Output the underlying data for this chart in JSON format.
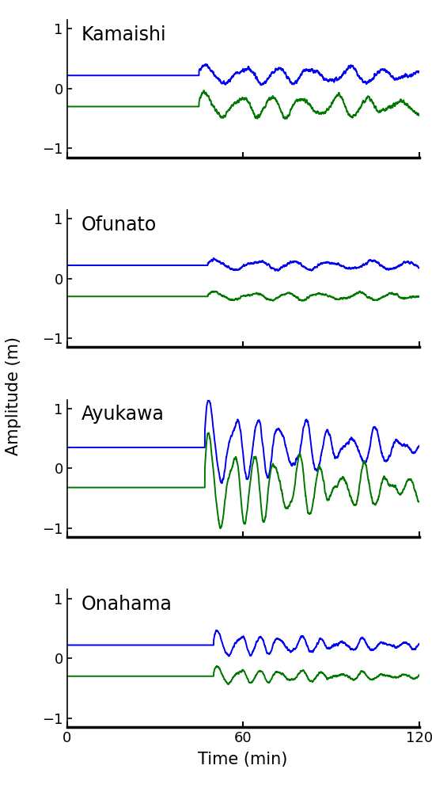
{
  "panels": [
    {
      "title": "Kamaishi",
      "blue_base": 0.22,
      "green_base": -0.3,
      "onset": 45,
      "blue_amp": 0.13,
      "green_amp": 0.17,
      "blue_period": 12.0,
      "green_period": 11.0,
      "blue_decay": 0.005,
      "green_decay": 0.005,
      "noise_b": 0.04,
      "noise_g": 0.04,
      "extra_freq_b": 0.05,
      "extra_freq_g": 0.05
    },
    {
      "title": "Ofunato",
      "blue_base": 0.22,
      "green_base": -0.3,
      "onset": 48,
      "blue_amp": 0.07,
      "green_amp": 0.06,
      "blue_period": 13.0,
      "green_period": 12.0,
      "blue_decay": 0.005,
      "green_decay": 0.005,
      "noise_b": 0.025,
      "noise_g": 0.02,
      "extra_freq_b": 0.04,
      "extra_freq_g": 0.04
    },
    {
      "title": "Ayukawa",
      "blue_base": 0.35,
      "green_base": -0.32,
      "onset": 47,
      "blue_amp": 0.6,
      "green_amp": 0.68,
      "blue_period": 8.0,
      "green_period": 7.5,
      "blue_decay": 0.02,
      "green_decay": 0.02,
      "noise_b": 0.04,
      "noise_g": 0.04,
      "extra_freq_b": 0.07,
      "extra_freq_g": 0.07
    },
    {
      "title": "Onahama",
      "blue_base": 0.22,
      "green_base": -0.3,
      "onset": 50,
      "blue_amp": 0.18,
      "green_amp": 0.12,
      "blue_period": 7.0,
      "green_period": 7.0,
      "blue_decay": 0.02,
      "green_decay": 0.02,
      "noise_b": 0.025,
      "noise_g": 0.02,
      "extra_freq_b": 0.08,
      "extra_freq_g": 0.08
    }
  ],
  "xlim": [
    0,
    120
  ],
  "ylim": [
    -1.15,
    1.15
  ],
  "yticks": [
    -1,
    0,
    1
  ],
  "xticks": [
    0,
    60,
    120
  ],
  "blue_color": "#0000EE",
  "green_color": "#007700",
  "xlabel": "Time (min)",
  "ylabel": "Amplitude (m)",
  "title_fontsize": 17,
  "label_fontsize": 15,
  "tick_fontsize": 13,
  "linewidth": 1.4
}
